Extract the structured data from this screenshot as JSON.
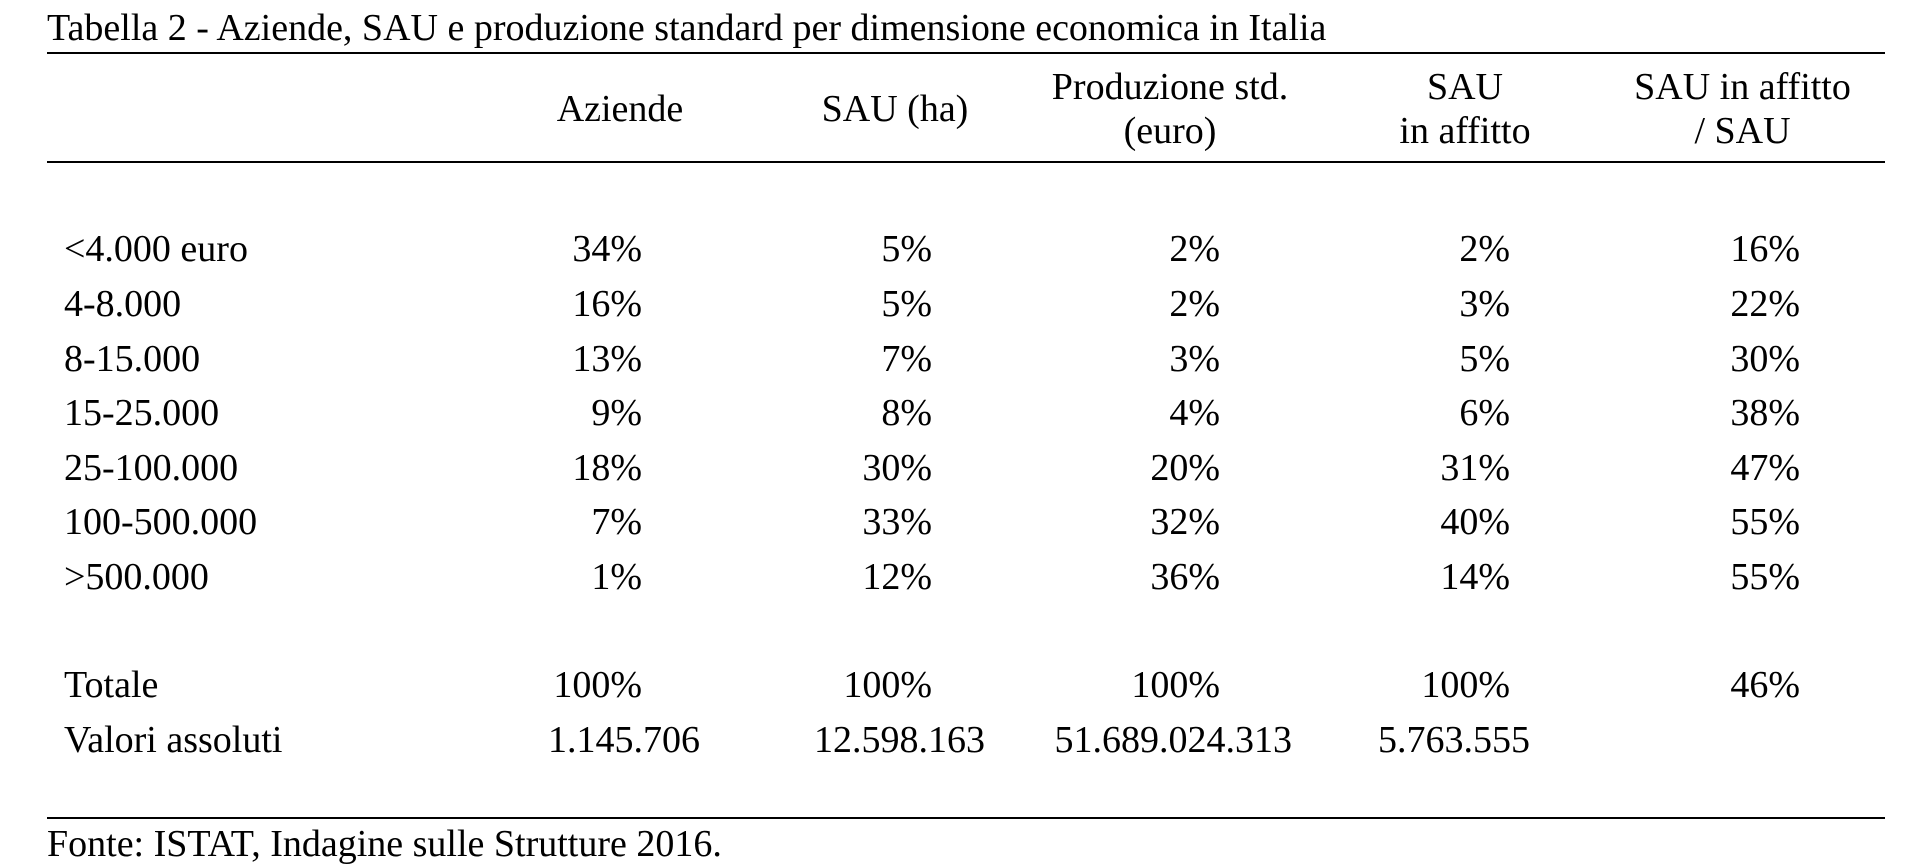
{
  "table": {
    "title": "Tabella 2 - Aziende, SAU e produzione standard per dimensione economica in Italia",
    "columns": [
      {
        "line1": "Aziende",
        "line2": ""
      },
      {
        "line1": "SAU (ha)",
        "line2": ""
      },
      {
        "line1": "Produzione std.",
        "line2": "(euro)"
      },
      {
        "line1": "SAU",
        "line2": "in affitto"
      },
      {
        "line1": "SAU in affitto",
        "line2": "/ SAU"
      }
    ],
    "rows": [
      {
        "label": "<4.000 euro",
        "values": [
          "34%",
          "5%",
          "2%",
          "2%",
          "16%"
        ]
      },
      {
        "label": "4-8.000",
        "values": [
          "16%",
          "5%",
          "2%",
          "3%",
          "22%"
        ]
      },
      {
        "label": "8-15.000",
        "values": [
          "13%",
          "7%",
          "3%",
          "5%",
          "30%"
        ]
      },
      {
        "label": "15-25.000",
        "values": [
          "9%",
          "8%",
          "4%",
          "6%",
          "38%"
        ]
      },
      {
        "label": "25-100.000",
        "values": [
          "18%",
          "30%",
          "20%",
          "31%",
          "47%"
        ]
      },
      {
        "label": "100-500.000",
        "values": [
          "7%",
          "33%",
          "32%",
          "40%",
          "55%"
        ]
      },
      {
        "label": ">500.000",
        "values": [
          "1%",
          "12%",
          "36%",
          "14%",
          "55%"
        ]
      }
    ],
    "totals": {
      "label": "Totale",
      "values": [
        "100%",
        "100%",
        "100%",
        "100%",
        "46%"
      ]
    },
    "absolute": {
      "label": "Valori assoluti",
      "values": [
        "1.145.706",
        "12.598.163",
        "51.689.024.313",
        "5.763.555",
        ""
      ]
    },
    "source": "Fonte: ISTAT, Indagine sulle Strutture 2016."
  }
}
